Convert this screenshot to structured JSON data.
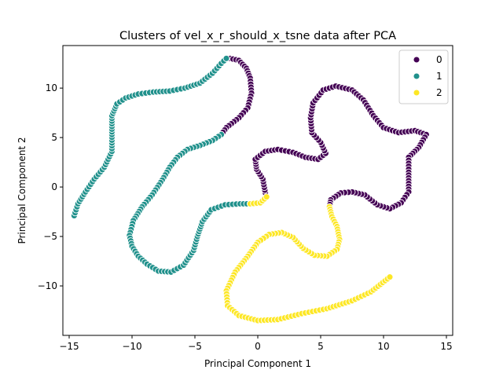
{
  "chart_data": {
    "type": "scatter",
    "title": "Clusters of vel_x_r_should_x_tsne data after PCA",
    "xlabel": "Principal Component 1",
    "ylabel": "Principal Component 2",
    "xlim": [
      -15.5,
      15.5
    ],
    "ylim": [
      -15,
      14.3
    ],
    "xticks": [
      -15,
      -10,
      -5,
      0,
      5,
      10,
      15
    ],
    "yticks": [
      -10,
      -5,
      0,
      5,
      10
    ],
    "grid": false,
    "legend_position": "top-right",
    "legend_title": "",
    "point_edge_color": "#ffffff",
    "series": [
      {
        "name": "0",
        "color": "#440154",
        "path": [
          [
            -2.2,
            13.0
          ],
          [
            -1.5,
            12.8
          ],
          [
            -0.9,
            12.0
          ],
          [
            -0.6,
            11.0
          ],
          [
            -0.5,
            9.5
          ],
          [
            -0.8,
            8.0
          ],
          [
            -1.5,
            7.0
          ],
          [
            -2.5,
            6.0
          ],
          [
            -2.9,
            5.3
          ]
        ],
        "path2": [
          [
            0.6,
            -0.6
          ],
          [
            0.4,
            0.8
          ],
          [
            -0.1,
            1.8
          ],
          [
            -0.2,
            2.8
          ],
          [
            0.6,
            3.6
          ],
          [
            1.6,
            3.8
          ],
          [
            2.8,
            3.5
          ],
          [
            3.8,
            3.0
          ],
          [
            4.8,
            2.8
          ],
          [
            5.4,
            3.4
          ],
          [
            5.0,
            4.5
          ],
          [
            4.3,
            5.5
          ],
          [
            4.2,
            7.0
          ],
          [
            4.4,
            8.5
          ],
          [
            5.2,
            9.8
          ],
          [
            6.2,
            10.2
          ],
          [
            7.5,
            9.8
          ],
          [
            8.4,
            8.8
          ],
          [
            9.2,
            7.2
          ],
          [
            10.0,
            6.0
          ],
          [
            11.2,
            5.5
          ],
          [
            12.5,
            5.7
          ],
          [
            13.4,
            5.3
          ],
          [
            12.8,
            4.0
          ],
          [
            12.0,
            3.0
          ],
          [
            12.0,
            1.5
          ],
          [
            12.0,
            -0.5
          ],
          [
            11.4,
            -1.6
          ],
          [
            10.5,
            -2.2
          ],
          [
            9.5,
            -1.8
          ],
          [
            8.5,
            -0.8
          ],
          [
            7.5,
            -0.5
          ],
          [
            6.6,
            -0.6
          ],
          [
            5.8,
            -1.3
          ],
          [
            5.7,
            -2.0
          ]
        ]
      },
      {
        "name": "1",
        "color": "#21918c",
        "path": [
          [
            -14.6,
            -2.9
          ],
          [
            -14.3,
            -1.7
          ],
          [
            -13.7,
            -0.5
          ],
          [
            -13.0,
            0.8
          ],
          [
            -12.2,
            2.0
          ],
          [
            -11.6,
            3.6
          ],
          [
            -11.6,
            5.3
          ],
          [
            -11.6,
            7.2
          ],
          [
            -11.2,
            8.4
          ],
          [
            -10.5,
            9.0
          ],
          [
            -9.5,
            9.4
          ],
          [
            -8.3,
            9.6
          ],
          [
            -7.0,
            9.7
          ],
          [
            -5.8,
            10.0
          ],
          [
            -4.6,
            10.5
          ],
          [
            -3.6,
            11.5
          ],
          [
            -2.9,
            12.5
          ],
          [
            -2.5,
            13.0
          ]
        ],
        "path2": [
          [
            -2.9,
            5.3
          ],
          [
            -3.6,
            4.7
          ],
          [
            -4.6,
            4.2
          ],
          [
            -5.6,
            3.8
          ],
          [
            -6.4,
            3.0
          ],
          [
            -7.0,
            2.0
          ],
          [
            -7.6,
            0.7
          ],
          [
            -8.4,
            -0.8
          ],
          [
            -9.2,
            -2.0
          ],
          [
            -9.9,
            -3.4
          ],
          [
            -10.2,
            -4.9
          ],
          [
            -10.0,
            -6.0
          ],
          [
            -9.5,
            -7.0
          ],
          [
            -8.8,
            -7.8
          ],
          [
            -7.9,
            -8.5
          ],
          [
            -6.9,
            -8.6
          ],
          [
            -5.9,
            -7.9
          ],
          [
            -5.1,
            -6.4
          ],
          [
            -4.8,
            -5.0
          ],
          [
            -4.4,
            -3.5
          ],
          [
            -3.7,
            -2.3
          ],
          [
            -2.6,
            -1.8
          ],
          [
            -1.4,
            -1.7
          ],
          [
            -0.6,
            -1.7
          ]
        ]
      },
      {
        "name": "2",
        "color": "#fde725",
        "path": [
          [
            -0.6,
            -1.7
          ],
          [
            0.2,
            -1.6
          ],
          [
            0.7,
            -1.0
          ]
        ],
        "path2": [
          [
            5.7,
            -2.0
          ],
          [
            5.9,
            -3.0
          ],
          [
            6.3,
            -4.0
          ],
          [
            6.5,
            -5.3
          ],
          [
            6.3,
            -6.3
          ],
          [
            5.5,
            -7.0
          ],
          [
            4.5,
            -6.9
          ],
          [
            3.6,
            -6.2
          ],
          [
            2.8,
            -5.1
          ],
          [
            1.9,
            -4.6
          ],
          [
            0.9,
            -4.8
          ],
          [
            0.0,
            -5.6
          ],
          [
            -0.8,
            -7.0
          ],
          [
            -1.8,
            -8.6
          ],
          [
            -2.5,
            -10.5
          ],
          [
            -2.4,
            -12.0
          ],
          [
            -1.5,
            -13.0
          ],
          [
            0.0,
            -13.5
          ],
          [
            1.6,
            -13.4
          ],
          [
            3.5,
            -12.8
          ],
          [
            5.5,
            -12.3
          ],
          [
            7.5,
            -11.5
          ],
          [
            9.0,
            -10.6
          ],
          [
            10.5,
            -9.1
          ]
        ]
      }
    ]
  }
}
